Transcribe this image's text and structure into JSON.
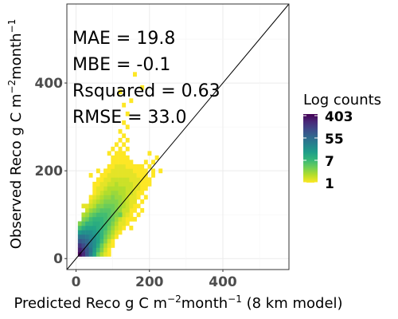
{
  "chart_data": {
    "type": "heatmap",
    "xlabel_parts": [
      "Predicted Reco g C m",
      "−2",
      "month",
      "−1",
      " (8 km model)"
    ],
    "ylabel_parts": [
      "Observed Reco g C m",
      "−2",
      "month",
      "−1"
    ],
    "xlim": [
      -25,
      580
    ],
    "ylim": [
      -25,
      580
    ],
    "xticks": [
      0,
      200,
      400
    ],
    "yticks": [
      0,
      200,
      400
    ],
    "grid": true,
    "identity_line": true,
    "annotations": [
      "MAE = 19.8",
      "MBE = -0.1",
      "Rsquared = 0.63",
      "RMSE = 33.0"
    ],
    "legend": {
      "title": "Log counts",
      "labels": [
        "403",
        "55",
        "7",
        "1"
      ],
      "position": "right",
      "colormap": [
        "#fde725",
        "#b5de2b",
        "#6ece58",
        "#35b779",
        "#1f9e89",
        "#26828e",
        "#31688e",
        "#3e4989",
        "#482878",
        "#440154"
      ]
    },
    "bin_size": 10,
    "log_count_max": 2.605,
    "bins": [
      [
        10,
        10,
        2.6
      ],
      [
        20,
        10,
        2.3
      ],
      [
        30,
        10,
        1.9
      ],
      [
        40,
        10,
        1.5
      ],
      [
        50,
        10,
        1.1
      ],
      [
        60,
        10,
        0.6
      ],
      [
        70,
        10,
        0.3
      ],
      [
        80,
        10,
        0.1
      ],
      [
        90,
        10,
        0.0
      ],
      [
        10,
        20,
        2.4
      ],
      [
        20,
        20,
        2.2
      ],
      [
        30,
        20,
        1.9
      ],
      [
        40,
        20,
        1.6
      ],
      [
        50,
        20,
        1.2
      ],
      [
        60,
        20,
        0.8
      ],
      [
        70,
        20,
        0.5
      ],
      [
        80,
        20,
        0.2
      ],
      [
        90,
        20,
        0.0
      ],
      [
        10,
        30,
        2.2
      ],
      [
        20,
        30,
        2.0
      ],
      [
        30,
        30,
        1.8
      ],
      [
        40,
        30,
        1.5
      ],
      [
        50,
        30,
        1.3
      ],
      [
        60,
        30,
        1.0
      ],
      [
        70,
        30,
        0.6
      ],
      [
        80,
        30,
        0.3
      ],
      [
        90,
        30,
        0.1
      ],
      [
        100,
        30,
        0.0
      ],
      [
        10,
        40,
        1.9
      ],
      [
        20,
        40,
        1.8
      ],
      [
        30,
        40,
        1.7
      ],
      [
        40,
        40,
        1.5
      ],
      [
        50,
        40,
        1.3
      ],
      [
        60,
        40,
        1.1
      ],
      [
        70,
        40,
        0.8
      ],
      [
        80,
        40,
        0.5
      ],
      [
        90,
        40,
        0.2
      ],
      [
        100,
        40,
        0.0
      ],
      [
        10,
        50,
        1.6
      ],
      [
        20,
        50,
        1.6
      ],
      [
        30,
        50,
        1.5
      ],
      [
        40,
        50,
        1.4
      ],
      [
        50,
        50,
        1.3
      ],
      [
        60,
        50,
        1.1
      ],
      [
        70,
        50,
        0.9
      ],
      [
        80,
        50,
        0.6
      ],
      [
        90,
        50,
        0.4
      ],
      [
        100,
        50,
        0.2
      ],
      [
        110,
        50,
        0.0
      ],
      [
        10,
        60,
        1.2
      ],
      [
        20,
        60,
        1.3
      ],
      [
        30,
        60,
        1.3
      ],
      [
        40,
        60,
        1.3
      ],
      [
        50,
        60,
        1.2
      ],
      [
        60,
        60,
        1.1
      ],
      [
        70,
        60,
        0.9
      ],
      [
        80,
        60,
        0.7
      ],
      [
        90,
        60,
        0.5
      ],
      [
        100,
        60,
        0.3
      ],
      [
        110,
        60,
        0.1
      ],
      [
        120,
        60,
        0.0
      ],
      [
        10,
        70,
        0.8
      ],
      [
        20,
        70,
        1.0
      ],
      [
        30,
        70,
        1.1
      ],
      [
        40,
        70,
        1.1
      ],
      [
        50,
        70,
        1.1
      ],
      [
        60,
        70,
        1.0
      ],
      [
        70,
        70,
        0.9
      ],
      [
        80,
        70,
        0.8
      ],
      [
        90,
        70,
        0.6
      ],
      [
        100,
        70,
        0.4
      ],
      [
        110,
        70,
        0.2
      ],
      [
        120,
        70,
        0.1
      ],
      [
        130,
        70,
        0.0
      ],
      [
        10,
        80,
        0.5
      ],
      [
        20,
        80,
        0.7
      ],
      [
        30,
        80,
        0.9
      ],
      [
        40,
        80,
        1.0
      ],
      [
        50,
        80,
        1.0
      ],
      [
        60,
        80,
        1.0
      ],
      [
        70,
        80,
        0.9
      ],
      [
        80,
        80,
        0.8
      ],
      [
        90,
        80,
        0.7
      ],
      [
        100,
        80,
        0.5
      ],
      [
        110,
        80,
        0.3
      ],
      [
        120,
        80,
        0.1
      ],
      [
        130,
        80,
        0.0
      ],
      [
        20,
        90,
        0.5
      ],
      [
        30,
        90,
        0.6
      ],
      [
        40,
        90,
        0.8
      ],
      [
        50,
        90,
        0.9
      ],
      [
        60,
        90,
        0.9
      ],
      [
        70,
        90,
        0.9
      ],
      [
        80,
        90,
        0.8
      ],
      [
        90,
        90,
        0.7
      ],
      [
        100,
        90,
        0.6
      ],
      [
        110,
        90,
        0.4
      ],
      [
        120,
        90,
        0.2
      ],
      [
        130,
        90,
        0.1
      ],
      [
        140,
        90,
        0.0
      ],
      [
        20,
        100,
        0.3
      ],
      [
        30,
        100,
        0.4
      ],
      [
        40,
        100,
        0.6
      ],
      [
        50,
        100,
        0.7
      ],
      [
        60,
        100,
        0.8
      ],
      [
        70,
        100,
        0.8
      ],
      [
        80,
        100,
        0.8
      ],
      [
        90,
        100,
        0.7
      ],
      [
        100,
        100,
        0.6
      ],
      [
        110,
        100,
        0.5
      ],
      [
        120,
        100,
        0.3
      ],
      [
        130,
        100,
        0.2
      ],
      [
        140,
        100,
        0.1
      ],
      [
        150,
        100,
        0.0
      ],
      [
        30,
        110,
        0.2
      ],
      [
        40,
        110,
        0.4
      ],
      [
        50,
        110,
        0.5
      ],
      [
        60,
        110,
        0.6
      ],
      [
        70,
        110,
        0.7
      ],
      [
        80,
        110,
        0.7
      ],
      [
        90,
        110,
        0.7
      ],
      [
        100,
        110,
        0.6
      ],
      [
        110,
        110,
        0.5
      ],
      [
        120,
        110,
        0.4
      ],
      [
        130,
        110,
        0.2
      ],
      [
        140,
        110,
        0.1
      ],
      [
        150,
        110,
        0.0
      ],
      [
        30,
        120,
        0.1
      ],
      [
        40,
        120,
        0.2
      ],
      [
        50,
        120,
        0.3
      ],
      [
        60,
        120,
        0.5
      ],
      [
        70,
        120,
        0.5
      ],
      [
        80,
        120,
        0.6
      ],
      [
        90,
        120,
        0.6
      ],
      [
        100,
        120,
        0.6
      ],
      [
        110,
        120,
        0.5
      ],
      [
        120,
        120,
        0.4
      ],
      [
        130,
        120,
        0.3
      ],
      [
        140,
        120,
        0.2
      ],
      [
        150,
        120,
        0.1
      ],
      [
        160,
        120,
        0.0
      ],
      [
        40,
        130,
        0.1
      ],
      [
        50,
        130,
        0.2
      ],
      [
        60,
        130,
        0.3
      ],
      [
        70,
        130,
        0.4
      ],
      [
        80,
        130,
        0.5
      ],
      [
        90,
        130,
        0.5
      ],
      [
        100,
        130,
        0.5
      ],
      [
        110,
        130,
        0.5
      ],
      [
        120,
        130,
        0.4
      ],
      [
        130,
        130,
        0.3
      ],
      [
        140,
        130,
        0.2
      ],
      [
        150,
        130,
        0.1
      ],
      [
        160,
        130,
        0.0
      ],
      [
        40,
        140,
        0.0
      ],
      [
        50,
        140,
        0.1
      ],
      [
        60,
        140,
        0.2
      ],
      [
        70,
        140,
        0.3
      ],
      [
        80,
        140,
        0.4
      ],
      [
        90,
        140,
        0.4
      ],
      [
        100,
        140,
        0.5
      ],
      [
        110,
        140,
        0.4
      ],
      [
        120,
        140,
        0.4
      ],
      [
        130,
        140,
        0.3
      ],
      [
        140,
        140,
        0.2
      ],
      [
        150,
        140,
        0.1
      ],
      [
        160,
        140,
        0.1
      ],
      [
        170,
        140,
        0.0
      ],
      [
        50,
        150,
        0.0
      ],
      [
        60,
        150,
        0.1
      ],
      [
        70,
        150,
        0.2
      ],
      [
        80,
        150,
        0.3
      ],
      [
        90,
        150,
        0.3
      ],
      [
        100,
        150,
        0.4
      ],
      [
        110,
        150,
        0.4
      ],
      [
        120,
        150,
        0.3
      ],
      [
        130,
        150,
        0.3
      ],
      [
        140,
        150,
        0.2
      ],
      [
        150,
        150,
        0.2
      ],
      [
        160,
        150,
        0.1
      ],
      [
        170,
        150,
        0.0
      ],
      [
        50,
        160,
        0.0
      ],
      [
        60,
        160,
        0.1
      ],
      [
        70,
        160,
        0.1
      ],
      [
        80,
        160,
        0.2
      ],
      [
        90,
        160,
        0.3
      ],
      [
        100,
        160,
        0.3
      ],
      [
        110,
        160,
        0.3
      ],
      [
        120,
        160,
        0.3
      ],
      [
        130,
        160,
        0.3
      ],
      [
        140,
        160,
        0.2
      ],
      [
        150,
        160,
        0.2
      ],
      [
        160,
        160,
        0.1
      ],
      [
        170,
        160,
        0.1
      ],
      [
        180,
        160,
        0.0
      ],
      [
        60,
        170,
        0.0
      ],
      [
        70,
        170,
        0.1
      ],
      [
        80,
        170,
        0.1
      ],
      [
        90,
        170,
        0.2
      ],
      [
        100,
        170,
        0.2
      ],
      [
        110,
        170,
        0.3
      ],
      [
        120,
        170,
        0.2
      ],
      [
        130,
        170,
        0.2
      ],
      [
        140,
        170,
        0.2
      ],
      [
        150,
        170,
        0.2
      ],
      [
        160,
        170,
        0.1
      ],
      [
        170,
        170,
        0.1
      ],
      [
        180,
        170,
        0.0
      ],
      [
        190,
        170,
        0.0
      ],
      [
        60,
        180,
        0.0
      ],
      [
        70,
        180,
        0.0
      ],
      [
        80,
        180,
        0.1
      ],
      [
        90,
        180,
        0.1
      ],
      [
        100,
        180,
        0.2
      ],
      [
        110,
        180,
        0.2
      ],
      [
        120,
        180,
        0.2
      ],
      [
        130,
        180,
        0.2
      ],
      [
        140,
        180,
        0.2
      ],
      [
        150,
        180,
        0.1
      ],
      [
        160,
        180,
        0.1
      ],
      [
        170,
        180,
        0.1
      ],
      [
        180,
        180,
        0.0
      ],
      [
        190,
        180,
        0.0
      ],
      [
        200,
        180,
        0.0
      ],
      [
        70,
        190,
        0.0
      ],
      [
        80,
        190,
        0.0
      ],
      [
        90,
        190,
        0.1
      ],
      [
        100,
        190,
        0.1
      ],
      [
        110,
        190,
        0.1
      ],
      [
        120,
        190,
        0.1
      ],
      [
        130,
        190,
        0.1
      ],
      [
        140,
        190,
        0.1
      ],
      [
        150,
        190,
        0.1
      ],
      [
        160,
        190,
        0.1
      ],
      [
        170,
        190,
        0.0
      ],
      [
        180,
        190,
        0.0
      ],
      [
        190,
        190,
        0.0
      ],
      [
        80,
        200,
        0.0
      ],
      [
        90,
        200,
        0.0
      ],
      [
        100,
        200,
        0.1
      ],
      [
        110,
        200,
        0.1
      ],
      [
        120,
        200,
        0.1
      ],
      [
        130,
        200,
        0.1
      ],
      [
        140,
        200,
        0.1
      ],
      [
        150,
        200,
        0.1
      ],
      [
        160,
        200,
        0.0
      ],
      [
        170,
        200,
        0.0
      ],
      [
        180,
        200,
        0.0
      ],
      [
        90,
        210,
        0.0
      ],
      [
        100,
        210,
        0.0
      ],
      [
        110,
        210,
        0.1
      ],
      [
        120,
        210,
        0.1
      ],
      [
        130,
        210,
        0.1
      ],
      [
        140,
        210,
        0.0
      ],
      [
        150,
        210,
        0.0
      ],
      [
        160,
        210,
        0.0
      ],
      [
        170,
        210,
        0.0
      ],
      [
        100,
        220,
        0.0
      ],
      [
        110,
        220,
        0.0
      ],
      [
        120,
        220,
        0.0
      ],
      [
        130,
        220,
        0.0
      ],
      [
        140,
        220,
        0.0
      ],
      [
        150,
        220,
        0.0
      ],
      [
        100,
        230,
        0.0
      ],
      [
        110,
        230,
        0.0
      ],
      [
        120,
        230,
        0.0
      ],
      [
        130,
        230,
        0.0
      ],
      [
        140,
        230,
        0.0
      ],
      [
        90,
        240,
        0.0
      ],
      [
        110,
        240,
        0.0
      ],
      [
        120,
        240,
        0.0
      ],
      [
        130,
        240,
        0.0
      ],
      [
        100,
        250,
        0.0
      ],
      [
        120,
        250,
        0.0
      ],
      [
        140,
        250,
        0.0
      ],
      [
        110,
        260,
        0.0
      ],
      [
        130,
        260,
        0.0
      ],
      [
        120,
        270,
        0.0
      ],
      [
        140,
        270,
        0.0
      ],
      [
        130,
        280,
        0.0
      ],
      [
        120,
        290,
        0.0
      ],
      [
        140,
        300,
        0.0
      ],
      [
        130,
        310,
        0.0
      ],
      [
        140,
        330,
        0.0
      ],
      [
        130,
        350,
        0.0
      ],
      [
        150,
        360,
        0.0
      ],
      [
        120,
        380,
        0.0
      ],
      [
        180,
        390,
        0.0
      ],
      [
        160,
        420,
        0.0
      ],
      [
        40,
        80,
        0.9
      ],
      [
        30,
        100,
        0.4
      ],
      [
        20,
        120,
        0.1
      ],
      [
        40,
        120,
        0.2
      ],
      [
        60,
        150,
        0.1
      ],
      [
        50,
        170,
        0.0
      ],
      [
        40,
        190,
        0.0
      ],
      [
        60,
        200,
        0.0
      ],
      [
        190,
        200,
        0.0
      ],
      [
        200,
        210,
        0.0
      ],
      [
        210,
        220,
        0.0
      ],
      [
        220,
        230,
        0.0
      ],
      [
        200,
        240,
        0.0
      ],
      [
        180,
        210,
        0.0
      ],
      [
        190,
        220,
        0.0
      ],
      [
        120,
        100,
        0.6
      ],
      [
        140,
        110,
        0.2
      ],
      [
        150,
        120,
        0.1
      ],
      [
        160,
        130,
        0.1
      ],
      [
        170,
        150,
        0.0
      ],
      [
        180,
        150,
        0.0
      ],
      [
        190,
        160,
        0.0
      ],
      [
        200,
        170,
        0.0
      ],
      [
        210,
        190,
        0.0
      ],
      [
        230,
        200,
        0.0
      ],
      [
        210,
        200,
        0.0
      ],
      [
        130,
        80,
        0.1
      ],
      [
        140,
        80,
        0.0
      ],
      [
        140,
        100,
        0.1
      ],
      [
        150,
        90,
        0.0
      ],
      [
        160,
        110,
        0.0
      ],
      [
        170,
        120,
        0.0
      ],
      [
        180,
        130,
        0.0
      ],
      [
        190,
        140,
        0.0
      ],
      [
        150,
        70,
        0.0
      ],
      [
        160,
        90,
        0.0
      ],
      [
        170,
        100,
        0.0
      ],
      [
        180,
        110,
        0.0
      ]
    ]
  }
}
